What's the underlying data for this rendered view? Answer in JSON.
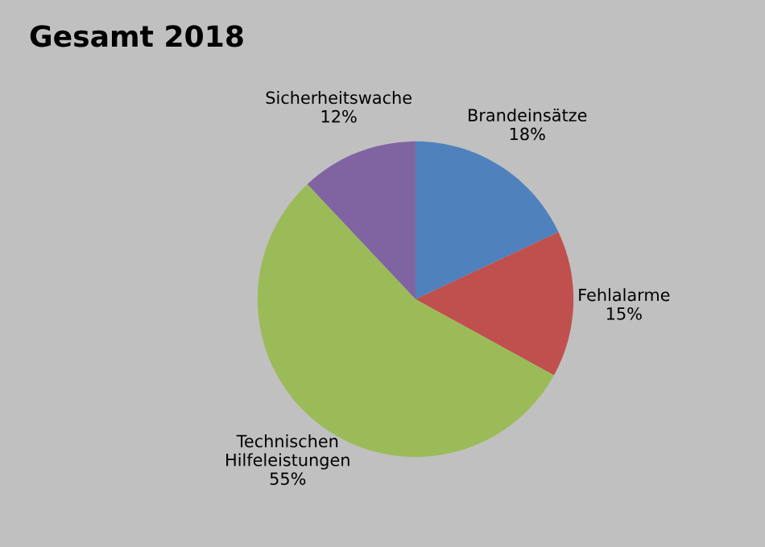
{
  "chart_data": {
    "type": "pie",
    "title": "Gesamt 2018",
    "categories": [
      "Brandeinsätze",
      "Fehlalarme",
      "Technischen Hilfeleistungen",
      "Sicherheitswache"
    ],
    "values": [
      18,
      15,
      55,
      12
    ],
    "colors": [
      "#4f81bd",
      "#c0504d",
      "#9bbb59",
      "#8064a2"
    ],
    "value_labels": [
      "18%",
      "15%",
      "55%",
      "12%"
    ],
    "legend": false
  }
}
